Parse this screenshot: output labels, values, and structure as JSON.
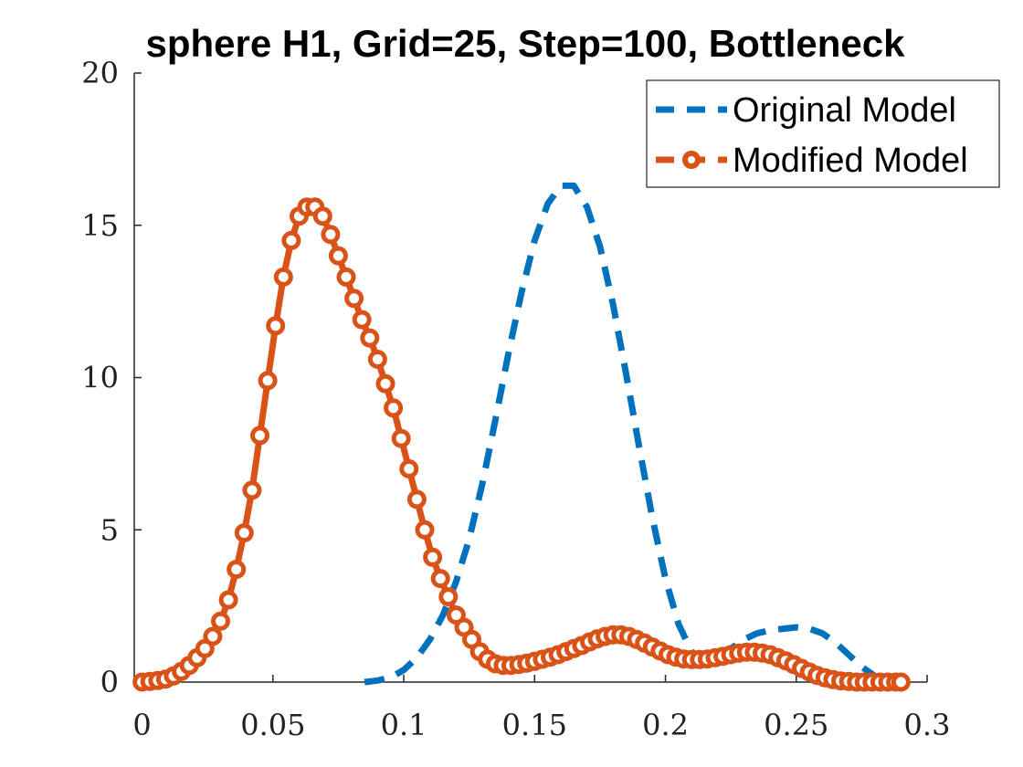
{
  "chart_data": {
    "type": "line",
    "title": "sphere H1, Grid=25, Step=100, Bottleneck",
    "xlabel": "",
    "ylabel": "",
    "xlim": [
      -0.003,
      0.3
    ],
    "ylim": [
      0,
      20
    ],
    "xticks": [
      "0",
      "0.05",
      "0.1",
      "0.15",
      "0.2",
      "0.25",
      "0.3"
    ],
    "xtick_values": [
      0,
      0.05,
      0.1,
      0.15,
      0.2,
      0.25,
      0.3
    ],
    "yticks": [
      "0",
      "5",
      "10",
      "15",
      "20"
    ],
    "ytick_values": [
      0,
      5,
      10,
      15,
      20
    ],
    "grid": false,
    "legend_position": "top-right",
    "colors": {
      "original": "#0072BD",
      "modified": "#D95319"
    },
    "series": [
      {
        "name": "Original Model",
        "style": "dashed",
        "x": [
          0.085,
          0.09,
          0.095,
          0.1,
          0.105,
          0.11,
          0.115,
          0.12,
          0.125,
          0.13,
          0.135,
          0.14,
          0.145,
          0.15,
          0.155,
          0.16,
          0.165,
          0.17,
          0.175,
          0.18,
          0.185,
          0.19,
          0.195,
          0.2,
          0.205,
          0.21,
          0.215,
          0.22,
          0.225,
          0.23,
          0.235,
          0.24,
          0.245,
          0.25,
          0.255,
          0.26,
          0.265,
          0.27,
          0.275,
          0.28,
          0.285,
          0.29
        ],
        "y": [
          0.0,
          0.05,
          0.15,
          0.4,
          0.8,
          1.4,
          2.2,
          3.3,
          4.7,
          6.5,
          8.6,
          10.8,
          12.8,
          14.5,
          15.7,
          16.3,
          16.3,
          15.6,
          14.3,
          12.4,
          10.1,
          7.7,
          5.4,
          3.4,
          1.9,
          1.0,
          0.7,
          0.8,
          1.1,
          1.4,
          1.6,
          1.7,
          1.75,
          1.8,
          1.75,
          1.6,
          1.3,
          0.9,
          0.5,
          0.2,
          0.05,
          0.0
        ]
      },
      {
        "name": "Modified Model",
        "style": "solid-circle",
        "x": [
          0.0,
          0.003,
          0.006,
          0.009,
          0.012,
          0.015,
          0.018,
          0.021,
          0.024,
          0.027,
          0.03,
          0.033,
          0.036,
          0.039,
          0.042,
          0.045,
          0.048,
          0.051,
          0.054,
          0.057,
          0.06,
          0.063,
          0.066,
          0.069,
          0.072,
          0.075,
          0.078,
          0.081,
          0.084,
          0.087,
          0.09,
          0.093,
          0.096,
          0.099,
          0.102,
          0.105,
          0.108,
          0.111,
          0.114,
          0.117,
          0.12,
          0.123,
          0.126,
          0.129,
          0.132,
          0.135,
          0.138,
          0.141,
          0.144,
          0.147,
          0.15,
          0.153,
          0.156,
          0.159,
          0.162,
          0.165,
          0.168,
          0.171,
          0.174,
          0.177,
          0.18,
          0.183,
          0.186,
          0.189,
          0.192,
          0.195,
          0.198,
          0.201,
          0.204,
          0.207,
          0.21,
          0.213,
          0.216,
          0.219,
          0.222,
          0.225,
          0.228,
          0.231,
          0.234,
          0.237,
          0.24,
          0.243,
          0.246,
          0.249,
          0.252,
          0.255,
          0.258,
          0.261,
          0.264,
          0.267,
          0.27,
          0.273,
          0.276,
          0.279,
          0.282,
          0.285,
          0.288,
          0.29
        ],
        "y": [
          0.0,
          0.02,
          0.05,
          0.1,
          0.2,
          0.35,
          0.55,
          0.8,
          1.1,
          1.5,
          2.0,
          2.7,
          3.7,
          4.9,
          6.3,
          8.1,
          9.9,
          11.7,
          13.3,
          14.5,
          15.3,
          15.6,
          15.6,
          15.3,
          14.7,
          14.0,
          13.3,
          12.6,
          11.9,
          11.3,
          10.6,
          9.8,
          9.0,
          8.0,
          7.0,
          6.0,
          5.0,
          4.1,
          3.4,
          2.8,
          2.2,
          1.8,
          1.4,
          1.0,
          0.75,
          0.6,
          0.55,
          0.55,
          0.58,
          0.62,
          0.68,
          0.75,
          0.82,
          0.9,
          1.0,
          1.1,
          1.2,
          1.32,
          1.42,
          1.5,
          1.55,
          1.55,
          1.5,
          1.4,
          1.28,
          1.15,
          1.02,
          0.9,
          0.82,
          0.76,
          0.74,
          0.74,
          0.76,
          0.8,
          0.85,
          0.9,
          0.95,
          0.98,
          0.98,
          0.95,
          0.9,
          0.8,
          0.7,
          0.58,
          0.45,
          0.33,
          0.22,
          0.14,
          0.08,
          0.04,
          0.02,
          0.0,
          0.0,
          0.0,
          0.0,
          0.0,
          0.0,
          0.0
        ]
      }
    ]
  }
}
